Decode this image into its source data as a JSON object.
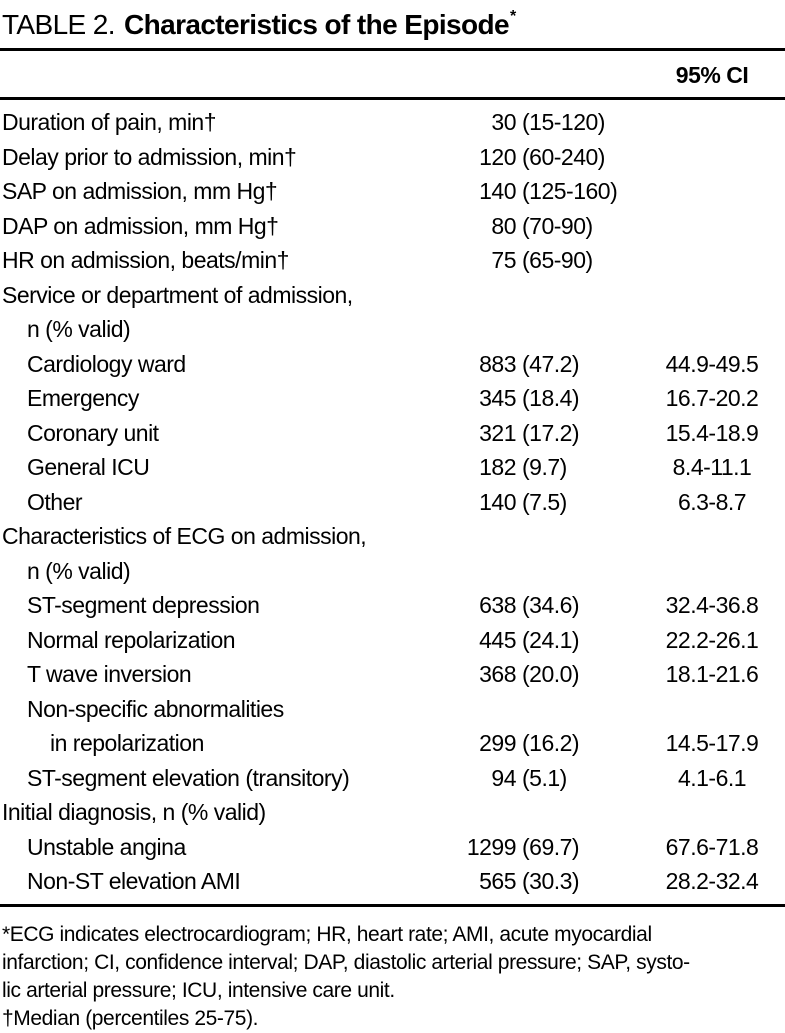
{
  "title": {
    "prefix": "TABLE 2.",
    "name": "Characteristics of the Episode",
    "footnote_marker": "*"
  },
  "columns": {
    "ci_header": "95% CI"
  },
  "rows": [
    {
      "label": "Duration of pain, min†",
      "indent": 0,
      "value": "30",
      "paren": "(15-120)",
      "ci": ""
    },
    {
      "label": "Delay prior to admission, min†",
      "indent": 0,
      "value": "120",
      "paren": "(60-240)",
      "ci": ""
    },
    {
      "label": "SAP on admission, mm Hg†",
      "indent": 0,
      "value": "140",
      "paren": "(125-160)",
      "ci": ""
    },
    {
      "label": "DAP on admission, mm Hg†",
      "indent": 0,
      "value": "80",
      "paren": "(70-90)",
      "ci": ""
    },
    {
      "label": "HR on admission, beats/min†",
      "indent": 0,
      "value": "75",
      "paren": "(65-90)",
      "ci": ""
    },
    {
      "label": "Service or department of admission,",
      "indent": 0,
      "value": "",
      "paren": "",
      "ci": ""
    },
    {
      "label": "n (% valid)",
      "indent": 1,
      "value": "",
      "paren": "",
      "ci": ""
    },
    {
      "label": "Cardiology ward",
      "indent": 1,
      "value": "883",
      "paren": "(47.2)",
      "ci": "44.9-49.5"
    },
    {
      "label": "Emergency",
      "indent": 1,
      "value": "345",
      "paren": "(18.4)",
      "ci": "16.7-20.2"
    },
    {
      "label": "Coronary unit",
      "indent": 1,
      "value": "321",
      "paren": "(17.2)",
      "ci": "15.4-18.9"
    },
    {
      "label": "General ICU",
      "indent": 1,
      "value": "182",
      "paren": "(9.7)",
      "ci": "8.4-11.1"
    },
    {
      "label": "Other",
      "indent": 1,
      "value": "140",
      "paren": "(7.5)",
      "ci": "6.3-8.7"
    },
    {
      "label": "Characteristics of ECG on admission,",
      "indent": 0,
      "value": "",
      "paren": "",
      "ci": ""
    },
    {
      "label": "n (% valid)",
      "indent": 1,
      "value": "",
      "paren": "",
      "ci": ""
    },
    {
      "label": "ST-segment depression",
      "indent": 1,
      "value": "638",
      "paren": "(34.6)",
      "ci": "32.4-36.8"
    },
    {
      "label": "Normal repolarization",
      "indent": 1,
      "value": "445",
      "paren": "(24.1)",
      "ci": "22.2-26.1"
    },
    {
      "label": "T wave inversion",
      "indent": 1,
      "value": "368",
      "paren": "(20.0)",
      "ci": "18.1-21.6"
    },
    {
      "label": "Non-specific abnormalities",
      "indent": 1,
      "value": "",
      "paren": "",
      "ci": ""
    },
    {
      "label": "in repolarization",
      "indent": 2,
      "value": "299",
      "paren": "(16.2)",
      "ci": "14.5-17.9"
    },
    {
      "label": "ST-segment elevation (transitory)",
      "indent": 1,
      "value": "94",
      "paren": "(5.1)",
      "ci": "4.1-6.1"
    },
    {
      "label": "Initial diagnosis, n (% valid)",
      "indent": 0,
      "value": "",
      "paren": "",
      "ci": ""
    },
    {
      "label": "Unstable angina",
      "indent": 1,
      "value": "1299",
      "paren": "(69.7)",
      "ci": "67.6-71.8"
    },
    {
      "label": "Non-ST elevation AMI",
      "indent": 1,
      "value": "565",
      "paren": "(30.3)",
      "ci": "28.2-32.4"
    }
  ],
  "footnotes": {
    "lines": [
      "*ECG indicates electrocardiogram; HR, heart rate; AMI, acute myocardial",
      "infarction; CI, confidence interval; DAP, diastolic arterial pressure; SAP, systo-",
      "lic arterial pressure; ICU, intensive care unit.",
      "†Median (percentiles 25-75)."
    ]
  },
  "colors": {
    "text": "#000000",
    "background": "#ffffff",
    "rule": "#000000"
  }
}
